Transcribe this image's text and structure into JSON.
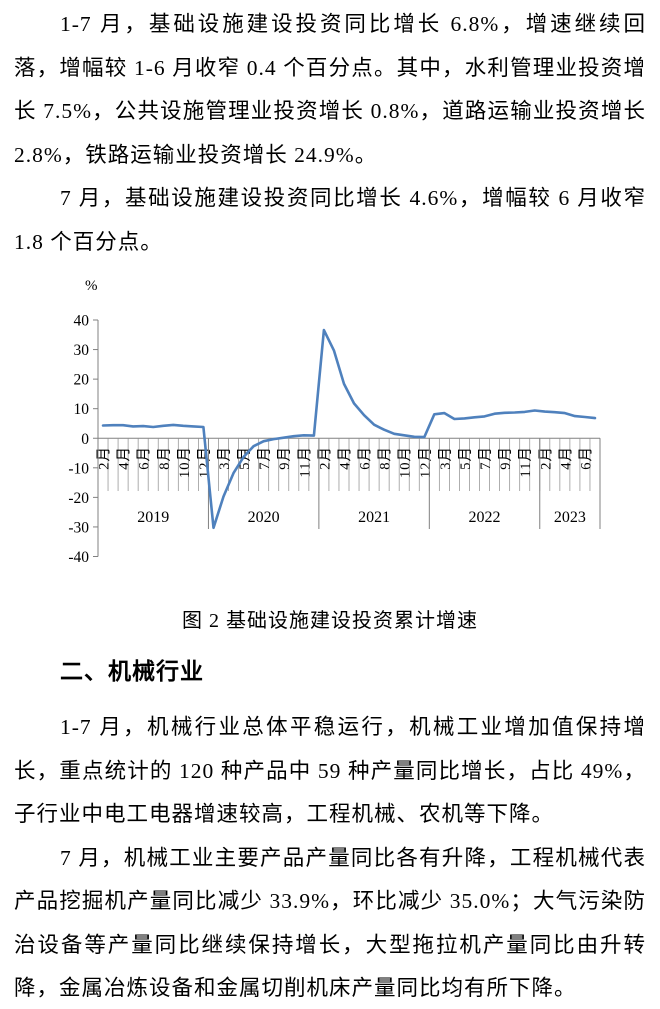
{
  "document": {
    "paragraph_1": "1-7 月，基础设施建设投资同比增长 6.8%，增速继续回落，增幅较 1-6 月收窄 0.4 个百分点。其中，水利管理业投资增长 7.5%，公共设施管理业投资增长 0.8%，道路运输业投资增长 2.8%，铁路运输业投资增长 24.9%。",
    "paragraph_2": "7 月，基础设施建设投资同比增长 4.6%，增幅较 6 月收窄 1.8 个百分点。",
    "figure_caption": "图 2 基础设施建设投资累计增速",
    "section_heading": "二、机械行业",
    "paragraph_3": "1-7 月，机械行业总体平稳运行，机械工业增加值保持增长，重点统计的 120 种产品中 59 种产量同比增长，占比 49%，子行业中电工电器增速较高，工程机械、农机等下降。",
    "paragraph_4": "7 月，机械工业主要产品产量同比各有升降，工程机械代表产品挖掘机产量同比减少 33.9%，环比减少 35.0%；大气污染防治设备等产量同比继续保持增长，大型拖拉机产量同比由升转降，金属冶炼设备和金属切削机床产量同比均有所下降。"
  },
  "chart_data": {
    "type": "line",
    "title": "图 2 基础设施建设投资累计增速",
    "ylabel": "%",
    "ylim": [
      -40,
      40
    ],
    "ytick_step": 10,
    "legend": "none",
    "grid": "vertical category ticks below zero axis only",
    "line_color": "#4F81BD",
    "axis_color": "#808080",
    "x_labeled_every": 2,
    "x": [
      "2月",
      "3月",
      "4月",
      "5月",
      "6月",
      "7月",
      "8月",
      "9月",
      "10月",
      "11月",
      "12月",
      "2月",
      "3月",
      "4月",
      "5月",
      "6月",
      "7月",
      "8月",
      "9月",
      "10月",
      "11月",
      "12月",
      "2月",
      "3月",
      "4月",
      "5月",
      "6月",
      "7月",
      "8月",
      "9月",
      "10月",
      "11月",
      "12月",
      "2月",
      "3月",
      "4月",
      "5月",
      "6月",
      "7月",
      "8月",
      "9月",
      "10月",
      "11月",
      "12月",
      "2月",
      "3月",
      "4月",
      "5月",
      "6月",
      "7月"
    ],
    "values": [
      4.3,
      4.4,
      4.4,
      4.0,
      4.1,
      3.8,
      4.2,
      4.5,
      4.2,
      4.0,
      3.8,
      -30.3,
      -19.7,
      -11.8,
      -6.3,
      -2.7,
      -1.0,
      -0.3,
      0.2,
      0.7,
      1.0,
      0.9,
      36.6,
      29.7,
      18.4,
      11.8,
      7.8,
      4.6,
      2.9,
      1.5,
      1.0,
      0.5,
      0.4,
      8.1,
      8.5,
      6.5,
      6.7,
      7.1,
      7.4,
      8.3,
      8.6,
      8.7,
      8.9,
      9.4,
      9.0,
      8.8,
      8.5,
      7.5,
      7.2,
      6.8
    ],
    "year_groups": [
      {
        "label": "2019",
        "count": 11
      },
      {
        "label": "2020",
        "count": 11
      },
      {
        "label": "2021",
        "count": 11
      },
      {
        "label": "2022",
        "count": 11
      },
      {
        "label": "2023",
        "count": 6
      }
    ]
  }
}
